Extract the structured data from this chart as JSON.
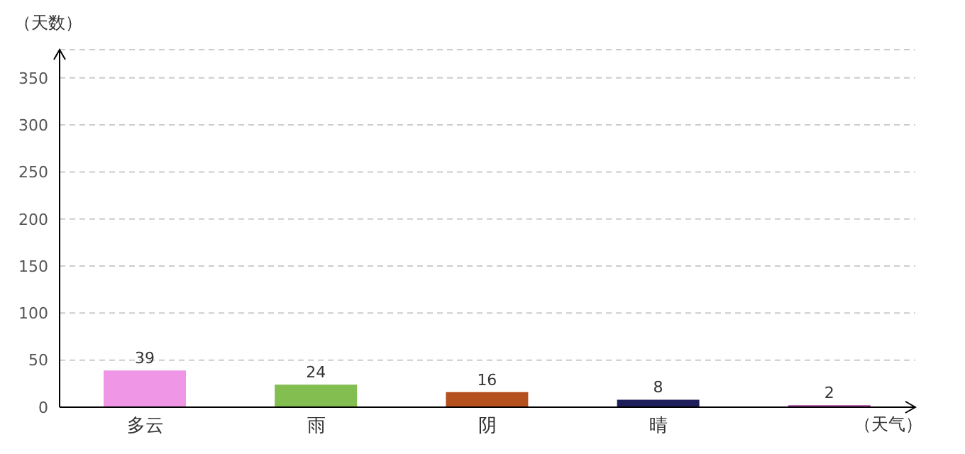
{
  "chart_data": {
    "type": "bar",
    "xlabel": "（天气）",
    "ylabel": "（天数）",
    "categories": [
      "多云",
      "雨",
      "阴",
      "晴",
      null
    ],
    "values": [
      39,
      24,
      16,
      8,
      2
    ],
    "colors": [
      "#f096e6",
      "#82be50",
      "#b4501e",
      "#1e1e5a",
      "#a03c96"
    ],
    "ylim": [
      0,
      380
    ],
    "yticks": [
      0,
      50,
      100,
      150,
      200,
      250,
      300,
      350
    ],
    "grid": "y",
    "data_labels": true
  }
}
